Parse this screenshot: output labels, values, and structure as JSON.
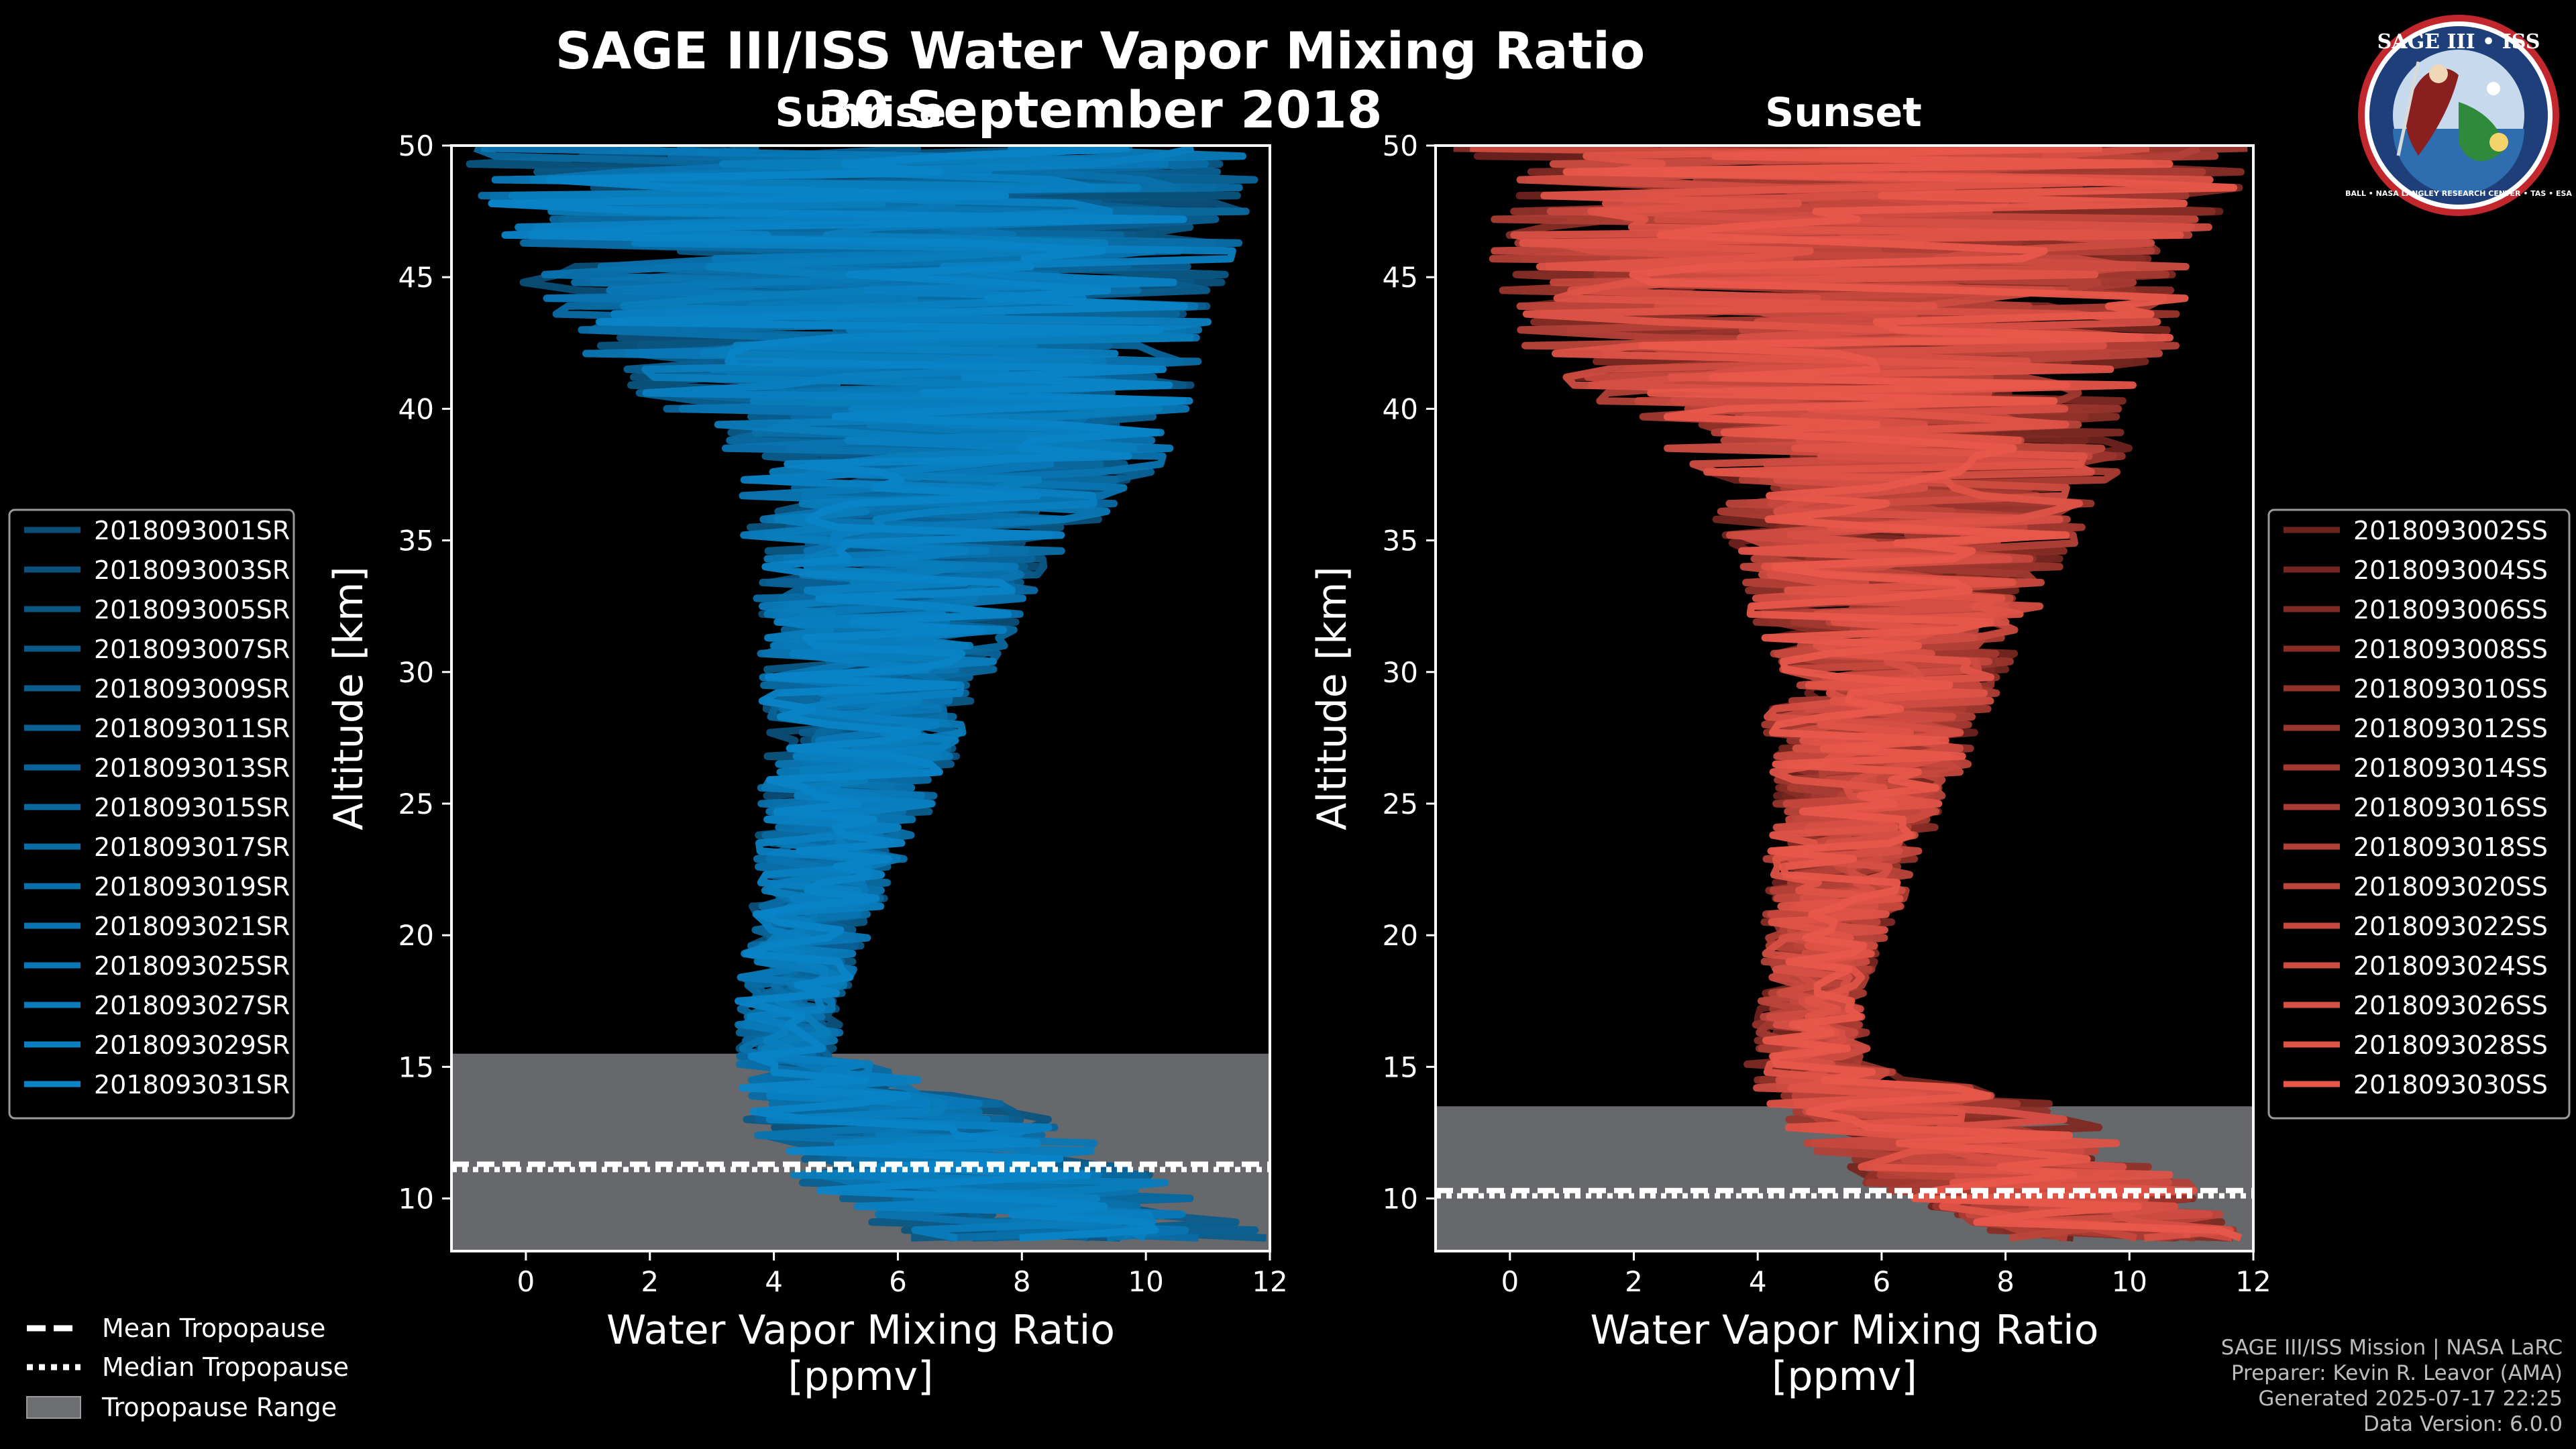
{
  "chart_data": {
    "type": "line",
    "title": "SAGE III/ISS Water Vapor Mixing Ratio",
    "subtitle": "30 September 2018",
    "panels": [
      {
        "id": "sunrise",
        "heading": "Sunrise",
        "xlabel_line1": "Water Vapor Mixing Ratio",
        "xlabel_line2": "[ppmv]",
        "ylabel": "Altitude [km]",
        "xlim": [
          -1.2,
          12
        ],
        "ylim": [
          8,
          50
        ],
        "xticks": [
          0,
          2,
          4,
          6,
          8,
          10,
          12
        ],
        "yticks": [
          10,
          15,
          20,
          25,
          30,
          35,
          40,
          45,
          50
        ],
        "tropopause_range": [
          8,
          15.5
        ],
        "mean_tropopause": 11.3,
        "median_tropopause": 11.1,
        "series_color_dark": "#0b2f4a",
        "series_color_light": "#0a84c7",
        "series_names": [
          "2018093001SR",
          "2018093003SR",
          "2018093005SR",
          "2018093007SR",
          "2018093009SR",
          "2018093011SR",
          "2018093013SR",
          "2018093015SR",
          "2018093017SR",
          "2018093019SR",
          "2018093021SR",
          "2018093025SR",
          "2018093027SR",
          "2018093029SR",
          "2018093031SR"
        ],
        "profile_shape": [
          {
            "alt": 8.5,
            "center": 9.0,
            "spread": 3.0
          },
          {
            "alt": 11.0,
            "center": 7.0,
            "spread": 3.0
          },
          {
            "alt": 13.0,
            "center": 6.0,
            "spread": 2.5
          },
          {
            "alt": 15.5,
            "center": 4.2,
            "spread": 0.8
          },
          {
            "alt": 18.0,
            "center": 4.3,
            "spread": 0.9
          },
          {
            "alt": 22.0,
            "center": 4.8,
            "spread": 1.1
          },
          {
            "alt": 26.0,
            "center": 5.3,
            "spread": 1.5
          },
          {
            "alt": 30.0,
            "center": 5.7,
            "spread": 1.9
          },
          {
            "alt": 34.0,
            "center": 6.0,
            "spread": 2.4
          },
          {
            "alt": 38.0,
            "center": 6.8,
            "spread": 3.5
          },
          {
            "alt": 42.0,
            "center": 6.0,
            "spread": 5.0
          },
          {
            "alt": 46.0,
            "center": 5.5,
            "spread": 6.0
          },
          {
            "alt": 50.0,
            "center": 5.5,
            "spread": 6.5
          }
        ]
      },
      {
        "id": "sunset",
        "heading": "Sunset",
        "xlabel_line1": "Water Vapor Mixing Ratio",
        "xlabel_line2": "[ppmv]",
        "ylabel": "Altitude [km]",
        "xlim": [
          -1.2,
          12
        ],
        "ylim": [
          8,
          50
        ],
        "xticks": [
          0,
          2,
          4,
          6,
          8,
          10,
          12
        ],
        "yticks": [
          10,
          15,
          20,
          25,
          30,
          35,
          40,
          45,
          50
        ],
        "tropopause_range": [
          8,
          13.5
        ],
        "mean_tropopause": 10.3,
        "median_tropopause": 10.1,
        "series_color_dark": "#2a0504",
        "series_color_light": "#e8574a",
        "series_names": [
          "2018093002SS",
          "2018093004SS",
          "2018093006SS",
          "2018093008SS",
          "2018093010SS",
          "2018093012SS",
          "2018093014SS",
          "2018093016SS",
          "2018093018SS",
          "2018093020SS",
          "2018093022SS",
          "2018093024SS",
          "2018093026SS",
          "2018093028SS",
          "2018093030SS"
        ],
        "profile_shape": [
          {
            "alt": 8.5,
            "center": 10.0,
            "spread": 2.0
          },
          {
            "alt": 11.0,
            "center": 8.0,
            "spread": 2.8
          },
          {
            "alt": 13.5,
            "center": 6.5,
            "spread": 2.5
          },
          {
            "alt": 15.0,
            "center": 4.8,
            "spread": 1.0
          },
          {
            "alt": 18.0,
            "center": 4.9,
            "spread": 0.8
          },
          {
            "alt": 22.0,
            "center": 5.3,
            "spread": 1.2
          },
          {
            "alt": 26.0,
            "center": 5.8,
            "spread": 1.6
          },
          {
            "alt": 30.0,
            "center": 6.0,
            "spread": 2.0
          },
          {
            "alt": 34.0,
            "center": 6.3,
            "spread": 2.6
          },
          {
            "alt": 38.0,
            "center": 6.3,
            "spread": 3.6
          },
          {
            "alt": 42.0,
            "center": 5.5,
            "spread": 5.2
          },
          {
            "alt": 46.0,
            "center": 5.5,
            "spread": 6.0
          },
          {
            "alt": 50.0,
            "center": 5.5,
            "spread": 6.5
          }
        ]
      }
    ],
    "shared_legend": {
      "mean_label": "Mean Tropopause",
      "median_label": "Median Tropopause",
      "range_label": "Tropopause Range",
      "range_color": "#6d6e71"
    }
  },
  "logo": {
    "title": "SAGE III • ISS",
    "ring_text": "BALL • NASA LANGLEY RESEARCH CENTER • TAS • ESA",
    "ring_color": "#1f3f7a",
    "border_color": "#c1272d"
  },
  "footer": {
    "line1": "SAGE III/ISS Mission | NASA LaRC",
    "line2": "Preparer: Kevin R. Leavor (AMA)",
    "line3": "Generated 2025-07-17 22:25",
    "line4": "Data Version: 6.0.0"
  }
}
